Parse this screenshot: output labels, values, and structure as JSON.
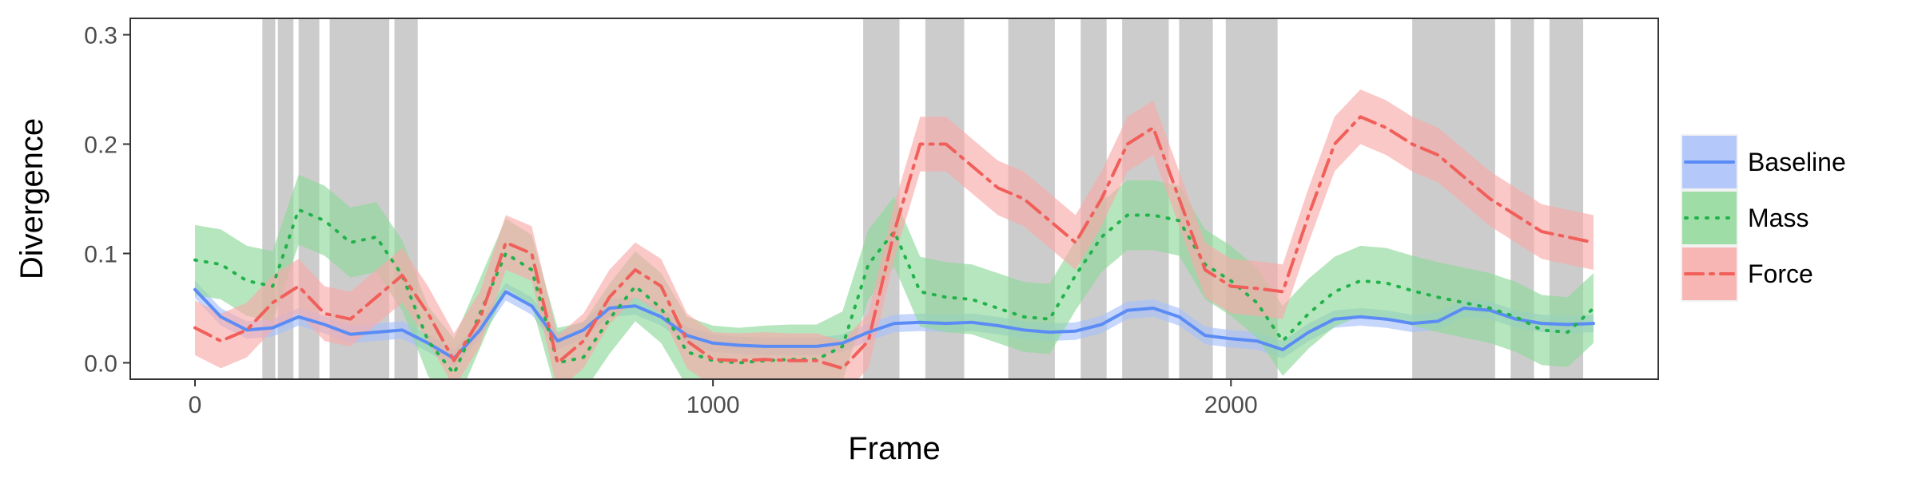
{
  "chart_data": {
    "type": "line",
    "xlabel": "Frame",
    "ylabel": "Divergence",
    "xlim": [
      -125,
      2825
    ],
    "ylim": [
      -0.015,
      0.315
    ],
    "xticks": [
      0,
      1000,
      2000
    ],
    "yticks": [
      0.0,
      0.1,
      0.2,
      0.3
    ],
    "ytick_labels": [
      "0.0",
      "0.1",
      "0.2",
      "0.3"
    ],
    "grid": false,
    "legend_position": "right",
    "shaded_intervals": [
      [
        130,
        155
      ],
      [
        160,
        190
      ],
      [
        200,
        240
      ],
      [
        260,
        375
      ],
      [
        385,
        430
      ],
      [
        1290,
        1360
      ],
      [
        1410,
        1485
      ],
      [
        1570,
        1660
      ],
      [
        1710,
        1760
      ],
      [
        1790,
        1880
      ],
      [
        1900,
        1965
      ],
      [
        1990,
        2090
      ],
      [
        2350,
        2510
      ],
      [
        2540,
        2585
      ],
      [
        2615,
        2680
      ]
    ],
    "series": [
      {
        "name": "Baseline",
        "color": "#5b8cf5",
        "band_color": "#a9c2fb",
        "dash": "solid",
        "x": [
          0,
          50,
          100,
          150,
          200,
          250,
          300,
          350,
          400,
          450,
          500,
          550,
          600,
          650,
          700,
          750,
          800,
          850,
          900,
          950,
          1000,
          1050,
          1100,
          1150,
          1200,
          1250,
          1300,
          1350,
          1400,
          1450,
          1500,
          1550,
          1600,
          1650,
          1700,
          1750,
          1800,
          1850,
          1900,
          1950,
          2000,
          2050,
          2100,
          2150,
          2200,
          2250,
          2300,
          2350,
          2400,
          2450,
          2500,
          2550,
          2600,
          2650,
          2700
        ],
        "y": [
          0.067,
          0.042,
          0.03,
          0.032,
          0.042,
          0.035,
          0.026,
          0.028,
          0.03,
          0.018,
          0.004,
          0.03,
          0.065,
          0.052,
          0.02,
          0.03,
          0.05,
          0.052,
          0.042,
          0.025,
          0.018,
          0.016,
          0.015,
          0.015,
          0.015,
          0.018,
          0.028,
          0.036,
          0.037,
          0.036,
          0.037,
          0.034,
          0.03,
          0.028,
          0.029,
          0.035,
          0.048,
          0.05,
          0.042,
          0.025,
          0.022,
          0.02,
          0.012,
          0.028,
          0.04,
          0.042,
          0.04,
          0.036,
          0.038,
          0.05,
          0.048,
          0.04,
          0.036,
          0.035,
          0.036
        ],
        "band": 0.008
      },
      {
        "name": "Mass",
        "color": "#22b24c",
        "band_color": "#8fd999",
        "dash": "dotted",
        "x": [
          0,
          50,
          100,
          150,
          200,
          250,
          300,
          350,
          400,
          450,
          500,
          550,
          600,
          650,
          700,
          750,
          800,
          850,
          900,
          950,
          1000,
          1050,
          1100,
          1150,
          1200,
          1250,
          1300,
          1350,
          1400,
          1450,
          1500,
          1550,
          1600,
          1650,
          1700,
          1750,
          1800,
          1850,
          1900,
          1950,
          2000,
          2050,
          2100,
          2150,
          2200,
          2250,
          2300,
          2350,
          2400,
          2450,
          2500,
          2550,
          2600,
          2650,
          2700
        ],
        "y": [
          0.094,
          0.09,
          0.075,
          0.07,
          0.14,
          0.13,
          0.11,
          0.115,
          0.08,
          0.02,
          -0.01,
          0.045,
          0.1,
          0.085,
          0.0,
          0.005,
          0.04,
          0.07,
          0.05,
          0.01,
          0.002,
          0.0,
          0.002,
          0.003,
          0.003,
          0.015,
          0.09,
          0.12,
          0.065,
          0.06,
          0.058,
          0.05,
          0.042,
          0.04,
          0.08,
          0.115,
          0.135,
          0.135,
          0.13,
          0.09,
          0.075,
          0.055,
          0.02,
          0.045,
          0.065,
          0.075,
          0.073,
          0.066,
          0.06,
          0.055,
          0.05,
          0.042,
          0.03,
          0.028,
          0.05
        ],
        "band": 0.032
      },
      {
        "name": "Force",
        "color": "#f15f5a",
        "band_color": "#f8aba9",
        "dash": "dashdot",
        "x": [
          0,
          50,
          100,
          150,
          200,
          250,
          300,
          350,
          400,
          450,
          500,
          550,
          600,
          650,
          700,
          750,
          800,
          850,
          900,
          950,
          1000,
          1050,
          1100,
          1150,
          1200,
          1250,
          1300,
          1350,
          1400,
          1450,
          1500,
          1550,
          1600,
          1650,
          1700,
          1750,
          1800,
          1850,
          1900,
          1950,
          2000,
          2050,
          2100,
          2150,
          2200,
          2250,
          2300,
          2350,
          2400,
          2450,
          2500,
          2550,
          2600,
          2650,
          2700
        ],
        "y": [
          0.032,
          0.02,
          0.03,
          0.055,
          0.07,
          0.045,
          0.04,
          0.06,
          0.08,
          0.045,
          0.002,
          0.04,
          0.11,
          0.1,
          0.0,
          0.02,
          0.06,
          0.085,
          0.07,
          0.02,
          0.003,
          0.002,
          0.003,
          0.002,
          0.002,
          -0.005,
          0.02,
          0.12,
          0.2,
          0.2,
          0.18,
          0.16,
          0.15,
          0.13,
          0.11,
          0.15,
          0.2,
          0.215,
          0.15,
          0.085,
          0.07,
          0.068,
          0.065,
          0.135,
          0.2,
          0.225,
          0.215,
          0.2,
          0.19,
          0.17,
          0.15,
          0.135,
          0.12,
          0.115,
          0.11
        ],
        "band": 0.025
      }
    ]
  }
}
